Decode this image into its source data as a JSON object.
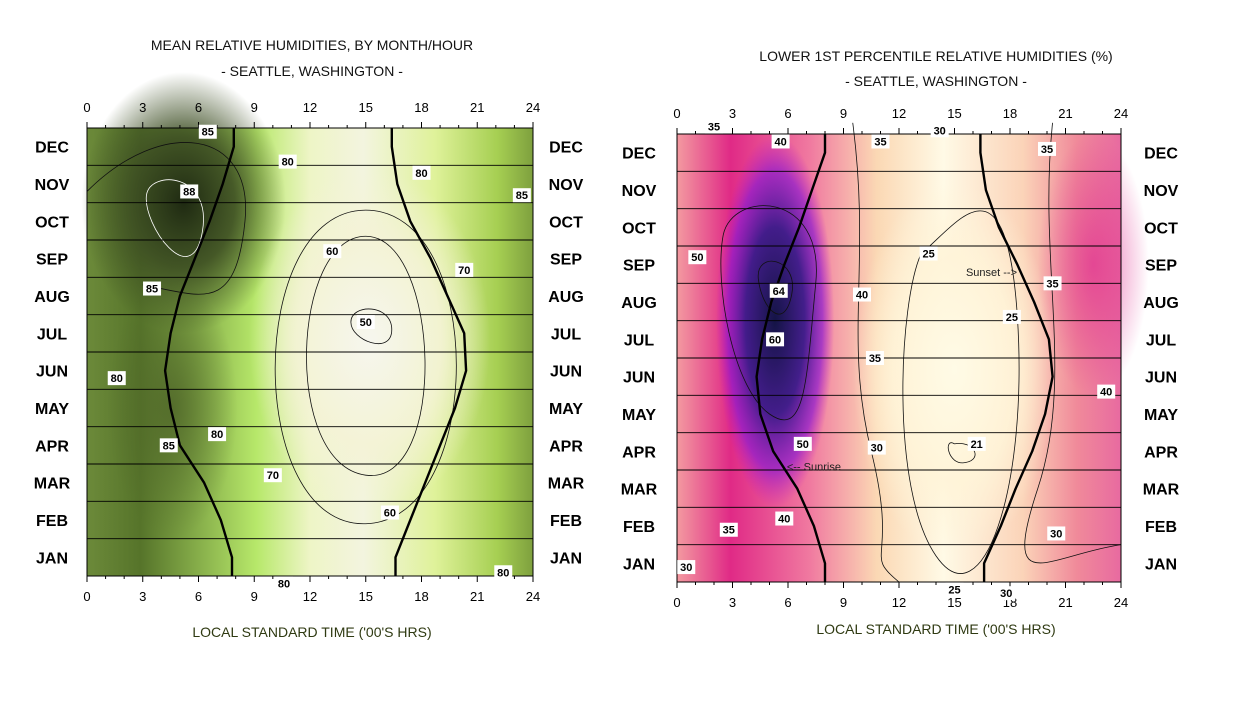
{
  "chart_data": [
    {
      "type": "heatmap",
      "title": "MEAN RELATIVE HUMIDITIES, BY MONTH/HOUR",
      "subtitle": "- SEATTLE, WASHINGTON -",
      "xlabel": "LOCAL STANDARD TIME ('00'S HRS)",
      "xlim": [
        0,
        24
      ],
      "x_ticks": [
        0,
        3,
        6,
        9,
        12,
        15,
        18,
        21,
        24
      ],
      "y_categories": [
        "JAN",
        "FEB",
        "MAR",
        "APR",
        "MAY",
        "JUN",
        "JUL",
        "AUG",
        "SEP",
        "OCT",
        "NOV",
        "DEC"
      ],
      "grid": true,
      "colors": {
        "high": "#1f2a12",
        "mid": "#c9f26a",
        "low": "#f6f6ee",
        "line": "#000000"
      },
      "contour_labels": [
        {
          "value": "85",
          "x": 6.5,
          "y": 11.4
        },
        {
          "value": "80",
          "x": 10.8,
          "y": 10.6
        },
        {
          "value": "80",
          "x": 18.0,
          "y": 10.3
        },
        {
          "value": "85",
          "x": 23.4,
          "y": 9.7
        },
        {
          "value": "88",
          "x": 5.5,
          "y": 9.8
        },
        {
          "value": "60",
          "x": 13.2,
          "y": 8.2
        },
        {
          "value": "70",
          "x": 20.3,
          "y": 7.7
        },
        {
          "value": "85",
          "x": 3.5,
          "y": 7.2
        },
        {
          "value": "50",
          "x": 15.0,
          "y": 6.3
        },
        {
          "value": "80",
          "x": 1.6,
          "y": 4.8
        },
        {
          "value": "80",
          "x": 7.0,
          "y": 3.3
        },
        {
          "value": "85",
          "x": 4.4,
          "y": 3.0
        },
        {
          "value": "70",
          "x": 10.0,
          "y": 2.2
        },
        {
          "value": "60",
          "x": 16.3,
          "y": 1.2
        },
        {
          "value": "80",
          "x": 10.6,
          "y": -0.7
        },
        {
          "value": "80",
          "x": 22.4,
          "y": -0.4
        }
      ],
      "sunrise_hours": [
        7.8,
        7.2,
        6.3,
        5.0,
        4.5,
        4.2,
        4.5,
        5.0,
        5.8,
        6.6,
        7.3,
        7.9
      ],
      "sunset_hours": [
        16.6,
        17.4,
        18.2,
        19.0,
        19.8,
        20.4,
        20.3,
        19.4,
        18.5,
        17.4,
        16.7,
        16.4
      ]
    },
    {
      "type": "heatmap",
      "title": "LOWER 1ST PERCENTILE RELATIVE HUMIDITIES (%)",
      "subtitle": "- SEATTLE, WASHINGTON -",
      "xlabel": "LOCAL STANDARD TIME ('00'S HRS)",
      "xlim": [
        0,
        24
      ],
      "x_ticks": [
        0,
        3,
        6,
        9,
        12,
        15,
        18,
        21,
        24
      ],
      "y_categories": [
        "JAN",
        "FEB",
        "MAR",
        "APR",
        "MAY",
        "JUN",
        "JUL",
        "AUG",
        "SEP",
        "OCT",
        "NOV",
        "DEC"
      ],
      "grid": true,
      "colors": {
        "high": "#141446",
        "mid": "#e0187a",
        "low": "#fffbe6",
        "line": "#000000"
      },
      "contour_labels": [
        {
          "value": "35",
          "x": 2.0,
          "y": 11.7
        },
        {
          "value": "40",
          "x": 5.6,
          "y": 11.3
        },
        {
          "value": "35",
          "x": 11.0,
          "y": 11.3
        },
        {
          "value": "30",
          "x": 14.2,
          "y": 11.6
        },
        {
          "value": "35",
          "x": 20.0,
          "y": 11.1
        },
        {
          "value": "50",
          "x": 1.1,
          "y": 8.2
        },
        {
          "value": "25",
          "x": 13.6,
          "y": 8.3
        },
        {
          "value": "64",
          "x": 5.5,
          "y": 7.3
        },
        {
          "value": "40",
          "x": 10.0,
          "y": 7.2
        },
        {
          "value": "35",
          "x": 20.3,
          "y": 7.5
        },
        {
          "value": "25",
          "x": 18.1,
          "y": 6.6
        },
        {
          "value": "60",
          "x": 5.3,
          "y": 6.0
        },
        {
          "value": "35",
          "x": 10.7,
          "y": 5.5
        },
        {
          "value": "40",
          "x": 23.2,
          "y": 4.6
        },
        {
          "value": "50",
          "x": 6.8,
          "y": 3.2
        },
        {
          "value": "30",
          "x": 10.8,
          "y": 3.1
        },
        {
          "value": "21",
          "x": 16.2,
          "y": 3.2
        },
        {
          "value": "40",
          "x": 5.8,
          "y": 1.2
        },
        {
          "value": "35",
          "x": 2.8,
          "y": 0.9
        },
        {
          "value": "30",
          "x": 20.5,
          "y": 0.8
        },
        {
          "value": "30",
          "x": 0.5,
          "y": -0.1
        },
        {
          "value": "25",
          "x": 15.0,
          "y": -0.7
        },
        {
          "value": "30",
          "x": 17.8,
          "y": -0.8
        }
      ],
      "annotations": [
        {
          "text": "Sunset -->",
          "x": 17.0,
          "y": 7.8
        },
        {
          "text": "<-- Sunrise",
          "x": 7.4,
          "y": 2.6
        }
      ],
      "sunrise_hours": [
        8.0,
        7.4,
        6.5,
        5.2,
        4.5,
        4.3,
        4.6,
        5.1,
        5.8,
        6.6,
        7.3,
        8.0
      ],
      "sunset_hours": [
        16.6,
        17.5,
        18.3,
        19.2,
        19.9,
        20.3,
        20.1,
        19.3,
        18.4,
        17.4,
        16.7,
        16.4
      ]
    }
  ]
}
